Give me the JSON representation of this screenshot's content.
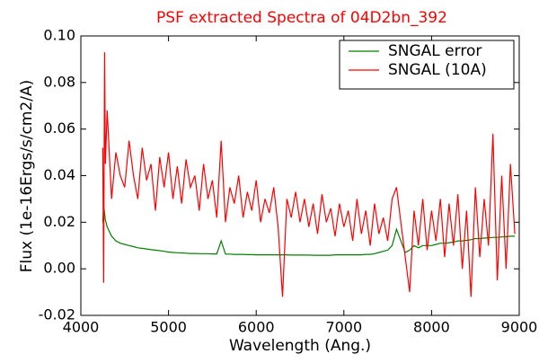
{
  "chart_data": {
    "type": "line",
    "title": "PSF extracted Spectra of 04D2bn_392",
    "xlabel": "Wavelength (Ang.)",
    "ylabel": "Flux (1e-16Ergs/s/cm2/A)",
    "xlim": [
      4000,
      9000
    ],
    "ylim": [
      -0.02,
      0.1
    ],
    "xticks": [
      4000,
      5000,
      6000,
      7000,
      8000,
      9000
    ],
    "yticks": [
      {
        "value": -0.02,
        "label": "-0.02"
      },
      {
        "value": 0,
        "label": "0.00"
      },
      {
        "value": 0.02,
        "label": "0.02"
      },
      {
        "value": 0.04,
        "label": "0.04"
      },
      {
        "value": 0.06,
        "label": "0.06"
      },
      {
        "value": 0.08,
        "label": "0.08"
      },
      {
        "value": 0.1,
        "label": "0.10"
      }
    ],
    "legend": "upper right",
    "x": [
      4250,
      4260,
      4270,
      4280,
      4300,
      4350,
      4400,
      4450,
      4500,
      4550,
      4600,
      4650,
      4700,
      4750,
      4800,
      4850,
      4900,
      4950,
      5000,
      5050,
      5100,
      5150,
      5200,
      5250,
      5300,
      5350,
      5400,
      5450,
      5500,
      5550,
      5600,
      5650,
      5700,
      5750,
      5800,
      5850,
      5900,
      5950,
      6000,
      6050,
      6100,
      6150,
      6200,
      6250,
      6300,
      6350,
      6400,
      6450,
      6500,
      6550,
      6600,
      6650,
      6700,
      6750,
      6800,
      6850,
      6900,
      6950,
      7000,
      7050,
      7100,
      7150,
      7200,
      7250,
      7300,
      7350,
      7400,
      7450,
      7500,
      7550,
      7600,
      7650,
      7700,
      7750,
      7800,
      7850,
      7900,
      7950,
      8000,
      8050,
      8100,
      8150,
      8200,
      8250,
      8300,
      8350,
      8400,
      8450,
      8500,
      8550,
      8600,
      8650,
      8700,
      8750,
      8800,
      8850,
      8900,
      8950
    ],
    "series": [
      {
        "name": "SNGAL error",
        "color": "#008000",
        "values": [
          0.02,
          0.027,
          0.024,
          0.021,
          0.018,
          0.014,
          0.012,
          0.011,
          0.0105,
          0.01,
          0.0095,
          0.009,
          0.0088,
          0.0085,
          0.0082,
          0.008,
          0.0078,
          0.0075,
          0.0072,
          0.007,
          0.0069,
          0.0068,
          0.0067,
          0.0066,
          0.0066,
          0.0065,
          0.0065,
          0.0065,
          0.0064,
          0.0064,
          0.012,
          0.0063,
          0.0063,
          0.0062,
          0.0062,
          0.0062,
          0.0061,
          0.0061,
          0.006,
          0.006,
          0.006,
          0.006,
          0.006,
          0.006,
          0.006,
          0.006,
          0.0059,
          0.0059,
          0.0059,
          0.0059,
          0.0059,
          0.0058,
          0.0058,
          0.0058,
          0.0058,
          0.0058,
          0.006,
          0.006,
          0.006,
          0.006,
          0.006,
          0.006,
          0.006,
          0.0062,
          0.0062,
          0.0065,
          0.007,
          0.0075,
          0.008,
          0.01,
          0.017,
          0.012,
          0.007,
          0.008,
          0.01,
          0.009,
          0.01,
          0.01,
          0.01,
          0.0105,
          0.011,
          0.011,
          0.0112,
          0.0115,
          0.012,
          0.012,
          0.0122,
          0.0125,
          0.013,
          0.013,
          0.0132,
          0.0133,
          0.0135,
          0.0135,
          0.0137,
          0.0138,
          0.014,
          0.014
        ]
      },
      {
        "name": "SNGAL (10A)",
        "color": "#ff0000",
        "values": [
          0.052,
          -0.006,
          0.093,
          0.045,
          0.068,
          0.03,
          0.05,
          0.04,
          0.035,
          0.055,
          0.04,
          0.03,
          0.052,
          0.038,
          0.045,
          0.025,
          0.048,
          0.035,
          0.05,
          0.03,
          0.044,
          0.028,
          0.047,
          0.035,
          0.04,
          0.025,
          0.045,
          0.03,
          0.038,
          0.022,
          0.055,
          0.02,
          0.035,
          0.028,
          0.04,
          0.022,
          0.033,
          0.025,
          0.038,
          0.02,
          0.03,
          0.024,
          0.035,
          0.018,
          -0.012,
          0.03,
          0.022,
          0.033,
          0.02,
          0.03,
          0.018,
          0.028,
          0.015,
          0.032,
          0.02,
          0.026,
          0.014,
          0.028,
          0.018,
          0.025,
          0.012,
          0.03,
          0.015,
          0.025,
          0.01,
          0.028,
          0.015,
          0.022,
          0.012,
          0.03,
          0.035,
          0.02,
          0.005,
          -0.01,
          0.025,
          0.01,
          0.03,
          0.008,
          0.025,
          0.012,
          0.03,
          0.005,
          0.028,
          0.01,
          0.032,
          0.0,
          0.025,
          -0.012,
          0.035,
          0.005,
          0.03,
          0.01,
          0.058,
          -0.005,
          0.04,
          0.0,
          0.045,
          0.015
        ]
      }
    ]
  }
}
